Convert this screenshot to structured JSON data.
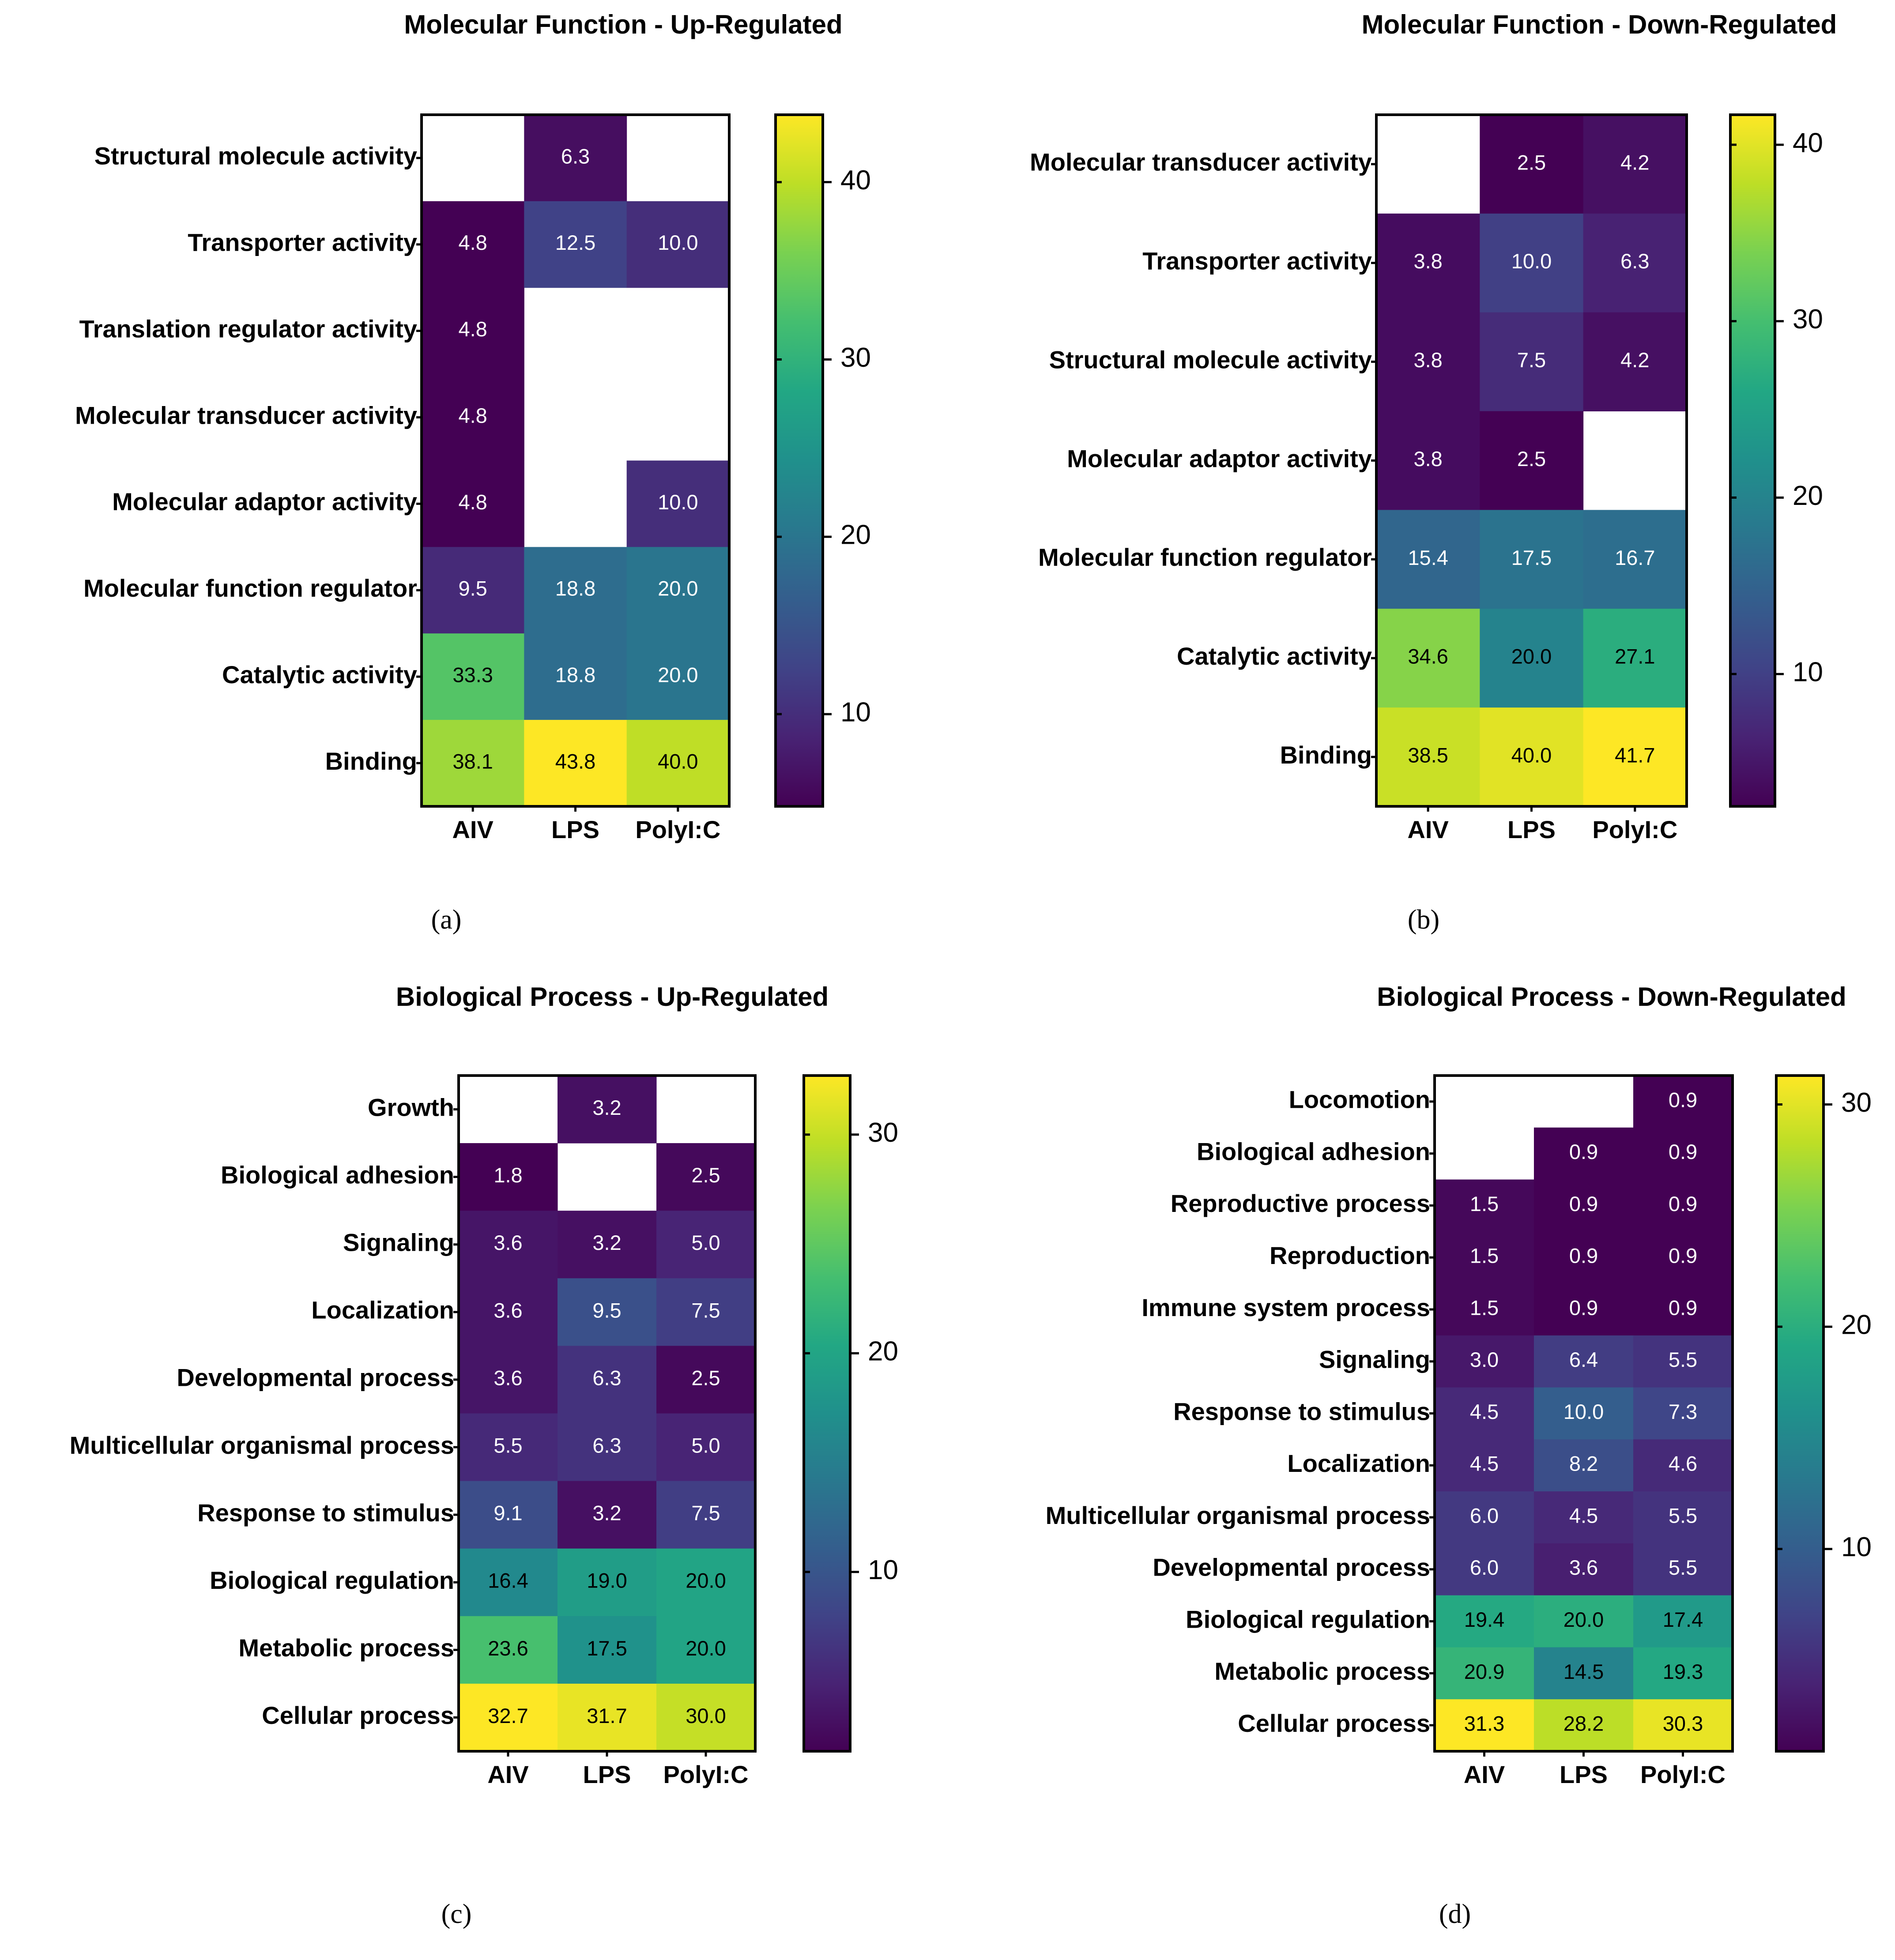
{
  "chart_data": [
    {
      "type": "heatmap",
      "panel_label": "(a)",
      "title": "Molecular Function - Up-Regulated",
      "columns": [
        "AIV",
        "LPS",
        "PolyI:C"
      ],
      "rows": [
        "Structural molecule activity",
        "Transporter activity",
        "Translation regulator activity",
        "Molecular transducer activity",
        "Molecular adaptor activity",
        "Molecular function regulator",
        "Catalytic activity",
        "Binding"
      ],
      "values": [
        [
          null,
          6.3,
          null
        ],
        [
          4.8,
          12.5,
          10.0
        ],
        [
          4.8,
          null,
          null
        ],
        [
          4.8,
          null,
          null
        ],
        [
          4.8,
          null,
          10.0
        ],
        [
          9.5,
          18.8,
          20.0
        ],
        [
          33.3,
          18.8,
          20.0
        ],
        [
          38.1,
          43.8,
          40.0
        ]
      ],
      "colorbar": {
        "min": 4.8,
        "max": 43.8,
        "ticks": [
          10,
          20,
          30,
          40
        ],
        "colormap": "viridis"
      }
    },
    {
      "type": "heatmap",
      "panel_label": "(b)",
      "title": "Molecular Function - Down-Regulated",
      "columns": [
        "AIV",
        "LPS",
        "PolyI:C"
      ],
      "rows": [
        "Molecular transducer activity",
        "Transporter activity",
        "Structural molecule activity",
        "Molecular adaptor activity",
        "Molecular function regulator",
        "Catalytic activity",
        "Binding"
      ],
      "values": [
        [
          null,
          2.5,
          4.2
        ],
        [
          3.8,
          10.0,
          6.3
        ],
        [
          3.8,
          7.5,
          4.2
        ],
        [
          3.8,
          2.5,
          null
        ],
        [
          15.4,
          17.5,
          16.7
        ],
        [
          34.6,
          20.0,
          27.1
        ],
        [
          38.5,
          40.0,
          41.7
        ]
      ],
      "colorbar": {
        "min": 2.5,
        "max": 41.7,
        "ticks": [
          10,
          20,
          30,
          40
        ],
        "colormap": "viridis"
      }
    },
    {
      "type": "heatmap",
      "panel_label": "(c)",
      "title": "Biological Process - Up-Regulated",
      "columns": [
        "AIV",
        "LPS",
        "PolyI:C"
      ],
      "rows": [
        "Growth",
        "Biological adhesion",
        "Signaling",
        "Localization",
        "Developmental process",
        "Multicellular organismal process",
        "Response to stimulus",
        "Biological regulation",
        "Metabolic process",
        "Cellular process"
      ],
      "values": [
        [
          null,
          3.2,
          null
        ],
        [
          1.8,
          null,
          2.5
        ],
        [
          3.6,
          3.2,
          5.0
        ],
        [
          3.6,
          9.5,
          7.5
        ],
        [
          3.6,
          6.3,
          2.5
        ],
        [
          5.5,
          6.3,
          5.0
        ],
        [
          9.1,
          3.2,
          7.5
        ],
        [
          16.4,
          19.0,
          20.0
        ],
        [
          23.6,
          17.5,
          20.0
        ],
        [
          32.7,
          31.7,
          30.0
        ]
      ],
      "colorbar": {
        "min": 1.8,
        "max": 32.7,
        "ticks": [
          10,
          20,
          30
        ],
        "colormap": "viridis"
      }
    },
    {
      "type": "heatmap",
      "panel_label": "(d)",
      "title": "Biological Process - Down-Regulated",
      "columns": [
        "AIV",
        "LPS",
        "PolyI:C"
      ],
      "rows": [
        "Locomotion",
        "Biological adhesion",
        "Reproductive process",
        "Reproduction",
        "Immune system process",
        "Signaling",
        "Response to stimulus",
        "Localization",
        "Multicellular organismal process",
        "Developmental process",
        "Biological regulation",
        "Metabolic process",
        "Cellular process"
      ],
      "values": [
        [
          null,
          null,
          0.9
        ],
        [
          null,
          0.9,
          0.9
        ],
        [
          1.5,
          0.9,
          0.9
        ],
        [
          1.5,
          0.9,
          0.9
        ],
        [
          1.5,
          0.9,
          0.9
        ],
        [
          3.0,
          6.4,
          5.5
        ],
        [
          4.5,
          10.0,
          7.3
        ],
        [
          4.5,
          8.2,
          4.6
        ],
        [
          6.0,
          4.5,
          5.5
        ],
        [
          6.0,
          3.6,
          5.5
        ],
        [
          19.4,
          20.0,
          17.4
        ],
        [
          20.9,
          14.5,
          19.3
        ],
        [
          31.3,
          28.2,
          30.3
        ]
      ],
      "colorbar": {
        "min": 0.9,
        "max": 31.3,
        "ticks": [
          10,
          20,
          30
        ],
        "colormap": "viridis"
      }
    }
  ]
}
